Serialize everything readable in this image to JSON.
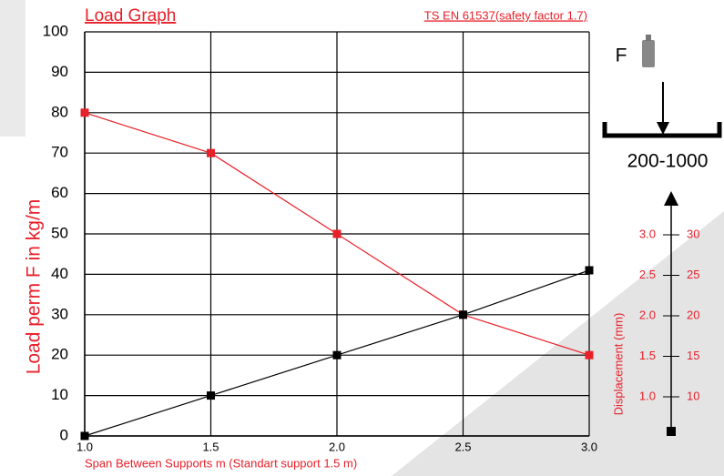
{
  "chart_data": {
    "type": "line",
    "title": "Load Graph",
    "standard_note": "TS EN 61537(safety factor 1.7)",
    "x_label": "Span Between Supports m (Standart support 1.5 m)",
    "y_label": "Load perm F in kg/m",
    "x": [
      1,
      1.5,
      2,
      2.5,
      3
    ],
    "xlim": [
      1,
      3
    ],
    "xticks": [
      {
        "value": 1,
        "label": "1.0"
      },
      1.5,
      {
        "value": 2,
        "label": "2.0"
      },
      2.5,
      {
        "value": 3,
        "label": "3.0"
      }
    ],
    "ylim": [
      0,
      100
    ],
    "yticks": [
      0,
      10,
      20,
      30,
      40,
      50,
      60,
      70,
      80,
      90,
      100
    ],
    "grid": true,
    "series": [
      {
        "color": "#e8202a",
        "values": [
          80,
          70,
          50,
          30,
          20
        ]
      },
      {
        "color": "#000000",
        "values": [
          0,
          10,
          20,
          30,
          41
        ]
      }
    ]
  },
  "load_diagram": {
    "force_label": "F",
    "range_label": "200-1000"
  },
  "displacement_scale": {
    "label": "Displacement (mm)",
    "left_ticks": [
      {
        "value": 3,
        "label": "3.0"
      },
      2.5,
      {
        "value": 2,
        "label": "2.0"
      },
      1.5,
      {
        "value": 1,
        "label": "1.0"
      }
    ],
    "right_ticks": [
      30,
      25,
      20,
      15,
      10
    ]
  }
}
